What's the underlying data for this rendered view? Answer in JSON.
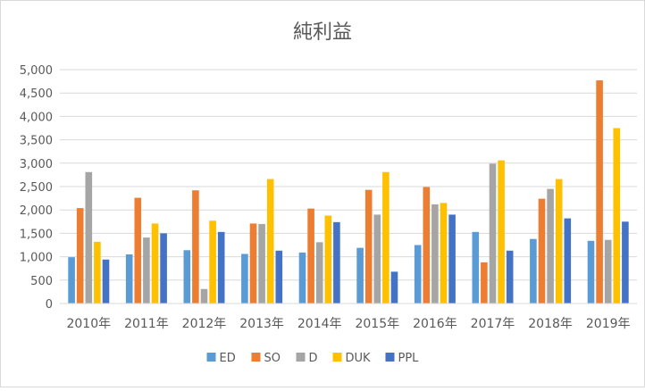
{
  "chart_data": {
    "type": "bar",
    "title": "純利益",
    "xlabel": "",
    "ylabel": "",
    "ylim": [
      0,
      5000
    ],
    "yticks": [
      "0",
      "500",
      "1,000",
      "1,500",
      "2,000",
      "2,500",
      "3,000",
      "3,500",
      "4,000",
      "4,500",
      "5,000"
    ],
    "ytick_values": [
      0,
      500,
      1000,
      1500,
      2000,
      2500,
      3000,
      3500,
      4000,
      4500,
      5000
    ],
    "grid": true,
    "legend_position": "bottom",
    "categories": [
      "2010年",
      "2011年",
      "2012年",
      "2013年",
      "2014年",
      "2015年",
      "2016年",
      "2017年",
      "2018年",
      "2019年"
    ],
    "series": [
      {
        "name": "ED",
        "color": "#5b9bd5",
        "values": [
          990,
          1050,
          1140,
          1060,
          1090,
          1190,
          1250,
          1530,
          1380,
          1340
        ]
      },
      {
        "name": "SO",
        "color": "#ed7d31",
        "values": [
          2040,
          2260,
          2420,
          1710,
          2030,
          2430,
          2490,
          880,
          2240,
          4770
        ]
      },
      {
        "name": "D",
        "color": "#a5a5a5",
        "values": [
          2810,
          1410,
          310,
          1700,
          1310,
          1900,
          2120,
          2990,
          2450,
          1360
        ]
      },
      {
        "name": "DUK",
        "color": "#ffc000",
        "values": [
          1320,
          1710,
          1770,
          2660,
          1880,
          2810,
          2150,
          3060,
          2660,
          3750
        ]
      },
      {
        "name": "PPL",
        "color": "#4472c4",
        "values": [
          940,
          1500,
          1530,
          1130,
          1740,
          680,
          1900,
          1130,
          1820,
          1750
        ]
      }
    ]
  }
}
